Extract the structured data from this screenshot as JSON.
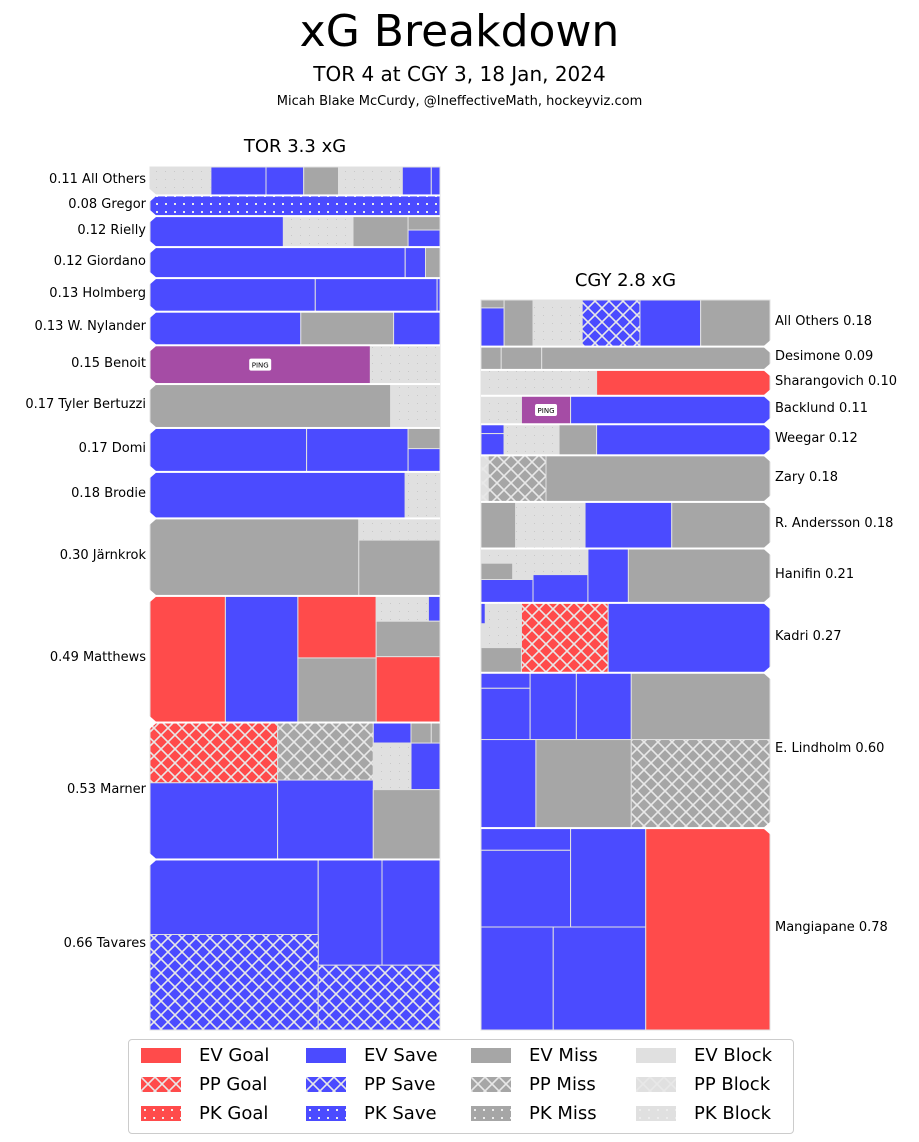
{
  "chart_data": {
    "type": "treemap",
    "title": "xG Breakdown",
    "subtitle": "TOR 4 at CGY 3, 18 Jan, 2024",
    "credit": "Micah Blake McCurdy, @IneffectiveMath, hockeyviz.com",
    "colors": {
      "goal": "#ff4b4b",
      "save": "#4b4bff",
      "miss": "#a6a6a6",
      "block": "#e0e0e0",
      "ping": "#a54ca5",
      "border": "#e0e0e0"
    },
    "teams": [
      {
        "team": "TOR",
        "header": "TOR 3.3 xG",
        "total_xg": 3.3,
        "label_side": "left",
        "players": [
          {
            "name": "All Others",
            "xg": 0.11,
            "label": "0.11 All Others"
          },
          {
            "name": "Gregor",
            "xg": 0.08,
            "label": "0.08 Gregor"
          },
          {
            "name": "Rielly",
            "xg": 0.12,
            "label": "0.12 Rielly"
          },
          {
            "name": "Giordano",
            "xg": 0.12,
            "label": "0.12 Giordano"
          },
          {
            "name": "Holmberg",
            "xg": 0.13,
            "label": "0.13 Holmberg"
          },
          {
            "name": "W. Nylander",
            "xg": 0.13,
            "label": "0.13 W. Nylander"
          },
          {
            "name": "Benoit",
            "xg": 0.15,
            "label": "0.15 Benoit",
            "ping_label": "PING"
          },
          {
            "name": "Tyler Bertuzzi",
            "xg": 0.17,
            "label": "0.17 Tyler Bertuzzi"
          },
          {
            "name": "Domi",
            "xg": 0.17,
            "label": "0.17 Domi"
          },
          {
            "name": "Brodie",
            "xg": 0.18,
            "label": "0.18 Brodie"
          },
          {
            "name": "Järnkrok",
            "xg": 0.3,
            "label": "0.30 Järnkrok"
          },
          {
            "name": "Matthews",
            "xg": 0.49,
            "label": "0.49 Matthews"
          },
          {
            "name": "Marner",
            "xg": 0.53,
            "label": "0.53 Marner"
          },
          {
            "name": "Tavares",
            "xg": 0.66,
            "label": "0.66 Tavares"
          }
        ]
      },
      {
        "team": "CGY",
        "header": "CGY 2.8 xG",
        "total_xg": 2.8,
        "label_side": "right",
        "players": [
          {
            "name": "All Others",
            "xg": 0.18,
            "label": "All Others 0.18"
          },
          {
            "name": "Desimone",
            "xg": 0.09,
            "label": "Desimone 0.09"
          },
          {
            "name": "Sharangovich",
            "xg": 0.1,
            "label": "Sharangovich 0.10"
          },
          {
            "name": "Backlund",
            "xg": 0.11,
            "label": "Backlund 0.11",
            "ping_label": "PING"
          },
          {
            "name": "Weegar",
            "xg": 0.12,
            "label": "Weegar 0.12"
          },
          {
            "name": "Zary",
            "xg": 0.18,
            "label": "Zary 0.18"
          },
          {
            "name": "R. Andersson",
            "xg": 0.18,
            "label": "R. Andersson 0.18"
          },
          {
            "name": "Hanifin",
            "xg": 0.21,
            "label": "Hanifin 0.21"
          },
          {
            "name": "Kadri",
            "xg": 0.27,
            "label": "Kadri 0.27"
          },
          {
            "name": "E. Lindholm",
            "xg": 0.6,
            "label": "E. Lindholm 0.60"
          },
          {
            "name": "Mangiapane",
            "xg": 0.78,
            "label": "Mangiapane 0.78"
          }
        ]
      }
    ],
    "legend": [
      {
        "label": "EV Goal",
        "result": "goal",
        "state": "EV"
      },
      {
        "label": "PP Goal",
        "result": "goal",
        "state": "PP"
      },
      {
        "label": "PK Goal",
        "result": "goal",
        "state": "PK"
      },
      {
        "label": "EV Save",
        "result": "save",
        "state": "EV"
      },
      {
        "label": "PP Save",
        "result": "save",
        "state": "PP"
      },
      {
        "label": "PK Save",
        "result": "save",
        "state": "PK"
      },
      {
        "label": "EV Miss",
        "result": "miss",
        "state": "EV"
      },
      {
        "label": "PP Miss",
        "result": "miss",
        "state": "PP"
      },
      {
        "label": "PK Miss",
        "result": "miss",
        "state": "PK"
      },
      {
        "label": "EV Block",
        "result": "block",
        "state": "EV"
      },
      {
        "label": "PP Block",
        "result": "block",
        "state": "PP"
      },
      {
        "label": "PK Block",
        "result": "block",
        "state": "PK"
      }
    ],
    "legend_position": "bottom-center"
  }
}
